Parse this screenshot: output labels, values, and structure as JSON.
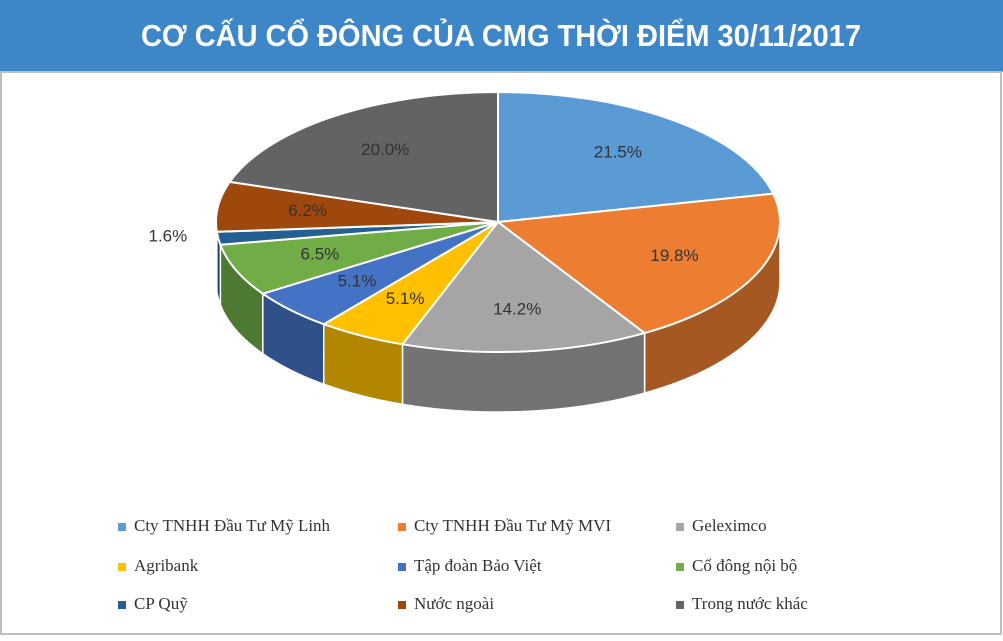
{
  "chart_data": {
    "type": "pie3d",
    "title": "CƠ CẤU CỔ ĐÔNG CỦA CMG THỜI ĐIỂM 30/11/2017",
    "categories": [
      "Cty TNHH Đầu Tư Mỹ Linh",
      "Cty TNHH Đầu Tư Mỹ MVI",
      "Geleximco",
      "Agribank",
      "Tập đoàn Bảo Việt",
      "Cổ đông nội bộ",
      "CP Quỹ",
      "Nước ngoài",
      "Trong nước khác"
    ],
    "values": [
      21.5,
      19.8,
      14.2,
      5.1,
      5.1,
      6.5,
      1.6,
      6.2,
      20.0
    ],
    "value_labels": [
      "21.5%",
      "19.8%",
      "14.2%",
      "5.1%",
      "5.1%",
      "6.5%",
      "1.6%",
      "6.2%",
      "20.0%"
    ],
    "colors": [
      "#5b9bd5",
      "#ed7d31",
      "#a5a5a5",
      "#ffc000",
      "#4472c4",
      "#70ad47",
      "#255e91",
      "#9e480e",
      "#636363"
    ],
    "legend": "bottom"
  }
}
